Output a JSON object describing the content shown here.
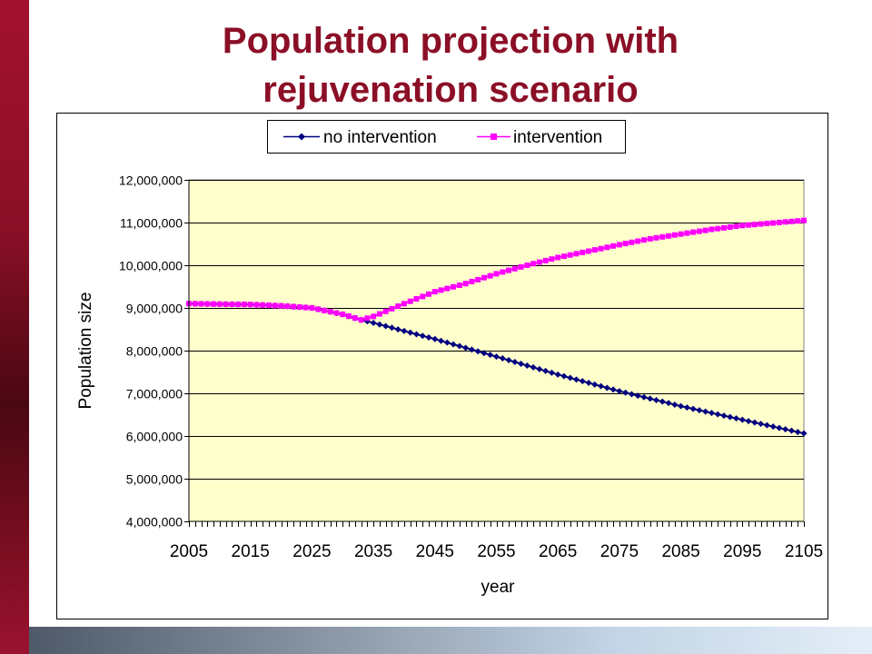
{
  "slide": {
    "title_line1": "Population projection with",
    "title_line2": "rejuvenation scenario"
  },
  "colors": {
    "accent": "#8b0f26",
    "plot_area": "#ffffcc",
    "no_intervention": "#000080",
    "intervention": "#ff00ff"
  },
  "chart_data": {
    "type": "line",
    "xlabel": "year",
    "ylabel": "Population size",
    "xlim": [
      2005,
      2105
    ],
    "ylim": [
      4000000,
      12000000
    ],
    "x_tick_labels": [
      "2005",
      "2015",
      "2025",
      "2035",
      "2045",
      "2055",
      "2065",
      "2075",
      "2085",
      "2095",
      "2105"
    ],
    "y_tick_labels": [
      "4,000,000",
      "5,000,000",
      "6,000,000",
      "7,000,000",
      "8,000,000",
      "9,000,000",
      "10,000,000",
      "11,000,000",
      "12,000,000"
    ],
    "y_tick_values": [
      4000000,
      5000000,
      6000000,
      7000000,
      8000000,
      9000000,
      10000000,
      11000000,
      12000000
    ],
    "x_tick_values": [
      2005,
      2015,
      2025,
      2035,
      2045,
      2055,
      2065,
      2075,
      2085,
      2095,
      2105
    ],
    "grid": "horizontal",
    "legend_position": "top",
    "series": [
      {
        "name": "no intervention",
        "marker": "diamond",
        "color": "#000080",
        "points": [
          [
            2005,
            9100000
          ],
          [
            2015,
            9080000
          ],
          [
            2020,
            9050000
          ],
          [
            2025,
            9000000
          ],
          [
            2030,
            8850000
          ],
          [
            2033,
            8720000
          ],
          [
            2035,
            8650000
          ],
          [
            2045,
            8270000
          ],
          [
            2055,
            7860000
          ],
          [
            2065,
            7440000
          ],
          [
            2075,
            7050000
          ],
          [
            2085,
            6700000
          ],
          [
            2095,
            6380000
          ],
          [
            2105,
            6060000
          ]
        ]
      },
      {
        "name": "intervention",
        "marker": "square",
        "color": "#ff00ff",
        "points": [
          [
            2005,
            9100000
          ],
          [
            2015,
            9080000
          ],
          [
            2020,
            9050000
          ],
          [
            2025,
            9000000
          ],
          [
            2030,
            8850000
          ],
          [
            2033,
            8720000
          ],
          [
            2035,
            8800000
          ],
          [
            2040,
            9100000
          ],
          [
            2045,
            9380000
          ],
          [
            2050,
            9570000
          ],
          [
            2055,
            9800000
          ],
          [
            2060,
            10000000
          ],
          [
            2065,
            10180000
          ],
          [
            2070,
            10330000
          ],
          [
            2075,
            10480000
          ],
          [
            2080,
            10620000
          ],
          [
            2085,
            10730000
          ],
          [
            2090,
            10840000
          ],
          [
            2095,
            10930000
          ],
          [
            2100,
            10990000
          ],
          [
            2105,
            11050000
          ]
        ]
      }
    ]
  }
}
